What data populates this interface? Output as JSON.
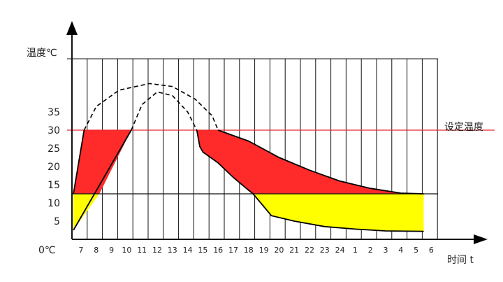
{
  "chart_data": {
    "type": "area",
    "y_axis_label": "温度℃",
    "x_axis_label": "时间 t",
    "origin_label": "0℃",
    "y_ticks": [
      5,
      10,
      15,
      20,
      25,
      30,
      35
    ],
    "x_ticks": [
      "7",
      "8",
      "9",
      "10",
      "11",
      "12",
      "13",
      "14",
      "15",
      "16",
      "17",
      "18",
      "19",
      "20",
      "21",
      "22",
      "23",
      "24",
      "1",
      "2",
      "3",
      "4",
      "5",
      "6"
    ],
    "set_temperature": 30,
    "set_temperature_label": "设定温度",
    "lower_line": 12.5,
    "ylim": [
      0,
      47
    ],
    "upper_curve": [
      {
        "x": 6.5,
        "y": 12.5
      },
      {
        "x": 7.2,
        "y": 30
      },
      {
        "x": 8,
        "y": 30
      },
      {
        "x": 9,
        "y": 30
      },
      {
        "x": 10,
        "y": 30
      },
      {
        "x": 10.3,
        "y": 30
      },
      {
        "x": 14.6,
        "y": 30
      },
      {
        "x": 14.8,
        "y": 25.5
      },
      {
        "x": 15,
        "y": 24
      },
      {
        "x": 15.5,
        "y": 22.5
      },
      {
        "x": 16,
        "y": 21
      },
      {
        "x": 17,
        "y": 17
      },
      {
        "x": 18,
        "y": 13.5
      },
      {
        "x": 18.3,
        "y": 12.5
      }
    ],
    "red_upper_decay": [
      {
        "x": 16,
        "y": 30
      },
      {
        "x": 18,
        "y": 27
      },
      {
        "x": 20,
        "y": 22.5
      },
      {
        "x": 22,
        "y": 19
      },
      {
        "x": 24,
        "y": 16
      },
      {
        "x": 26,
        "y": 14
      },
      {
        "x": 28,
        "y": 12.7
      },
      {
        "x": 29.5,
        "y": 12.5
      }
    ],
    "rise_line": [
      {
        "x": 6.5,
        "y": 2.5
      },
      {
        "x": 10.3,
        "y": 30
      }
    ],
    "cooling_curve": [
      {
        "x": 18.3,
        "y": 12.5
      },
      {
        "x": 19.5,
        "y": 6.5
      },
      {
        "x": 21,
        "y": 5
      },
      {
        "x": 23,
        "y": 3.5
      },
      {
        "x": 25,
        "y": 2.8
      },
      {
        "x": 27,
        "y": 2.3
      },
      {
        "x": 29.5,
        "y": 2.2
      }
    ],
    "dashed_outer": [
      {
        "x": 7.2,
        "y": 30
      },
      {
        "x": 8,
        "y": 36.5
      },
      {
        "x": 9.5,
        "y": 41
      },
      {
        "x": 11.5,
        "y": 42.8
      },
      {
        "x": 13,
        "y": 42
      },
      {
        "x": 14.5,
        "y": 38.5
      },
      {
        "x": 15.6,
        "y": 34
      },
      {
        "x": 16,
        "y": 30
      }
    ],
    "dashed_inner": [
      {
        "x": 10.3,
        "y": 30
      },
      {
        "x": 11,
        "y": 37
      },
      {
        "x": 12,
        "y": 40.5
      },
      {
        "x": 13,
        "y": 39.5
      },
      {
        "x": 14,
        "y": 35
      },
      {
        "x": 14.6,
        "y": 30
      }
    ],
    "colors": {
      "red_fill": "#ff2a2a",
      "yellow_fill": "#ffff00",
      "set_line": "#e8262a",
      "grid": "#111111",
      "axis": "#111111"
    }
  }
}
